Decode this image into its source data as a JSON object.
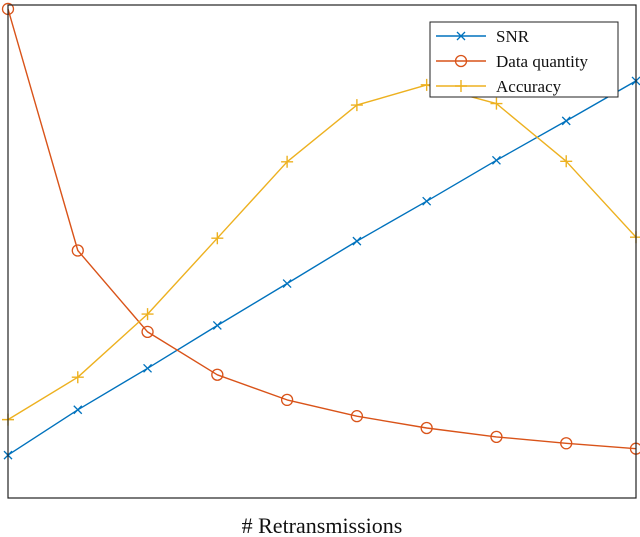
{
  "chart_data": {
    "type": "line",
    "title": "",
    "xlabel": "# Retransmissions",
    "ylabel": "",
    "x": [
      0,
      1,
      2,
      3,
      4,
      5,
      6,
      7,
      8,
      9
    ],
    "xlim": [
      0,
      9
    ],
    "ylim": [
      0,
      1
    ],
    "grid": false,
    "legend_position": "top-right",
    "series": [
      {
        "name": "SNR",
        "color": "#0072BD",
        "marker": "x",
        "values": [
          0.087,
          0.179,
          0.263,
          0.35,
          0.435,
          0.521,
          0.602,
          0.685,
          0.765,
          0.846
        ]
      },
      {
        "name": "Data quantity",
        "color": "#D95319",
        "marker": "o",
        "values": [
          0.992,
          0.502,
          0.337,
          0.25,
          0.199,
          0.166,
          0.142,
          0.124,
          0.111,
          0.1
        ]
      },
      {
        "name": "Accuracy",
        "color": "#EDB120",
        "marker": "+",
        "values": [
          0.159,
          0.245,
          0.373,
          0.527,
          0.682,
          0.797,
          0.838,
          0.8,
          0.683,
          0.529
        ]
      }
    ]
  }
}
